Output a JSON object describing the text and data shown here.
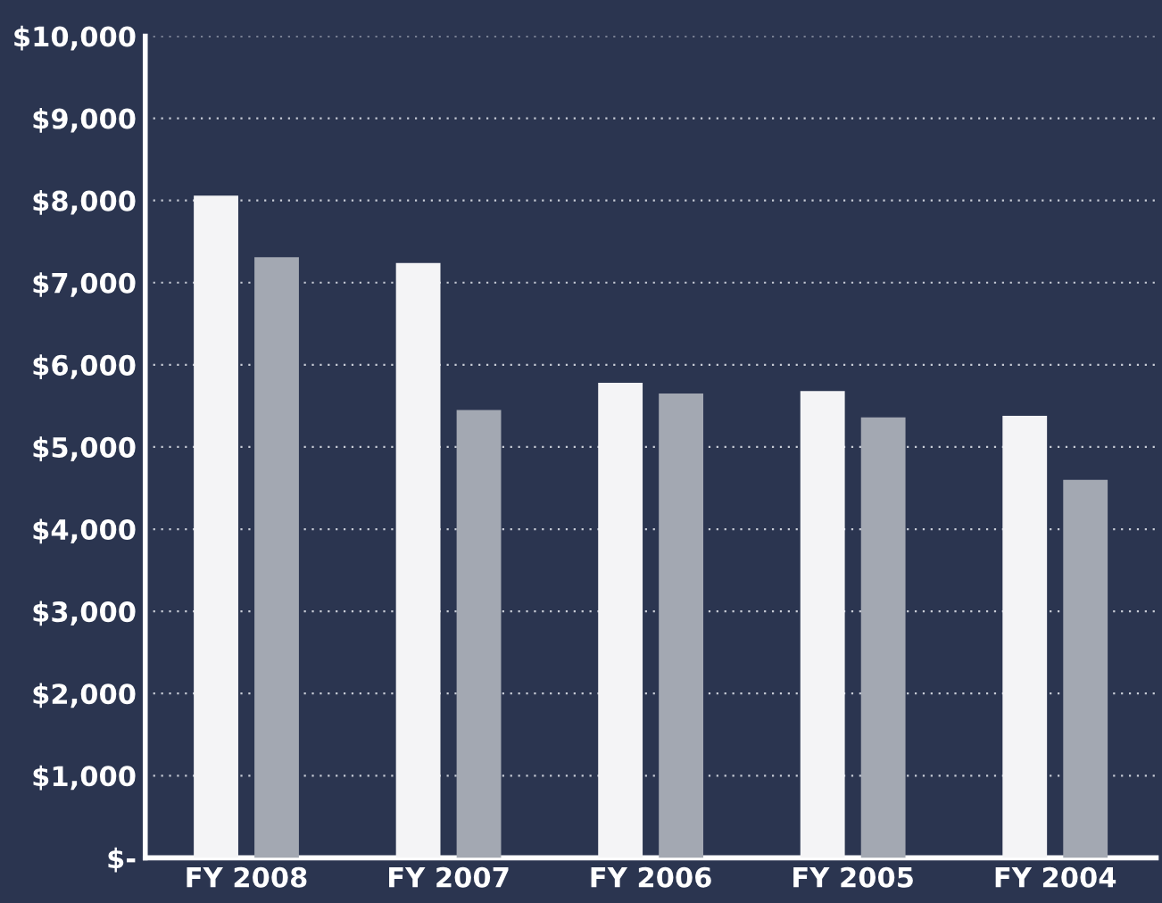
{
  "chart_data": {
    "type": "bar",
    "categories": [
      "FY 2008",
      "FY 2007",
      "FY 2006",
      "FY 2005",
      "FY 2004"
    ],
    "series": [
      {
        "color": "#f4f4f6",
        "values": [
          8060,
          7240,
          5780,
          5680,
          5380
        ]
      },
      {
        "color": "#a3a8b2",
        "values": [
          7310,
          5450,
          5650,
          5360,
          4600
        ]
      }
    ],
    "ylim": [
      0,
      10000
    ],
    "yticks": [
      {
        "value": 0,
        "label": "$-"
      },
      {
        "value": 1000,
        "label": "$1,000"
      },
      {
        "value": 2000,
        "label": "$2,000"
      },
      {
        "value": 3000,
        "label": "$3,000"
      },
      {
        "value": 4000,
        "label": "$4,000"
      },
      {
        "value": 5000,
        "label": "$5,000"
      },
      {
        "value": 6000,
        "label": "$6,000"
      },
      {
        "value": 7000,
        "label": "$7,000"
      },
      {
        "value": 8000,
        "label": "$8,000"
      },
      {
        "value": 9000,
        "label": "$9,000"
      },
      {
        "value": 10000,
        "label": "$10,000"
      }
    ],
    "grid": "y"
  }
}
